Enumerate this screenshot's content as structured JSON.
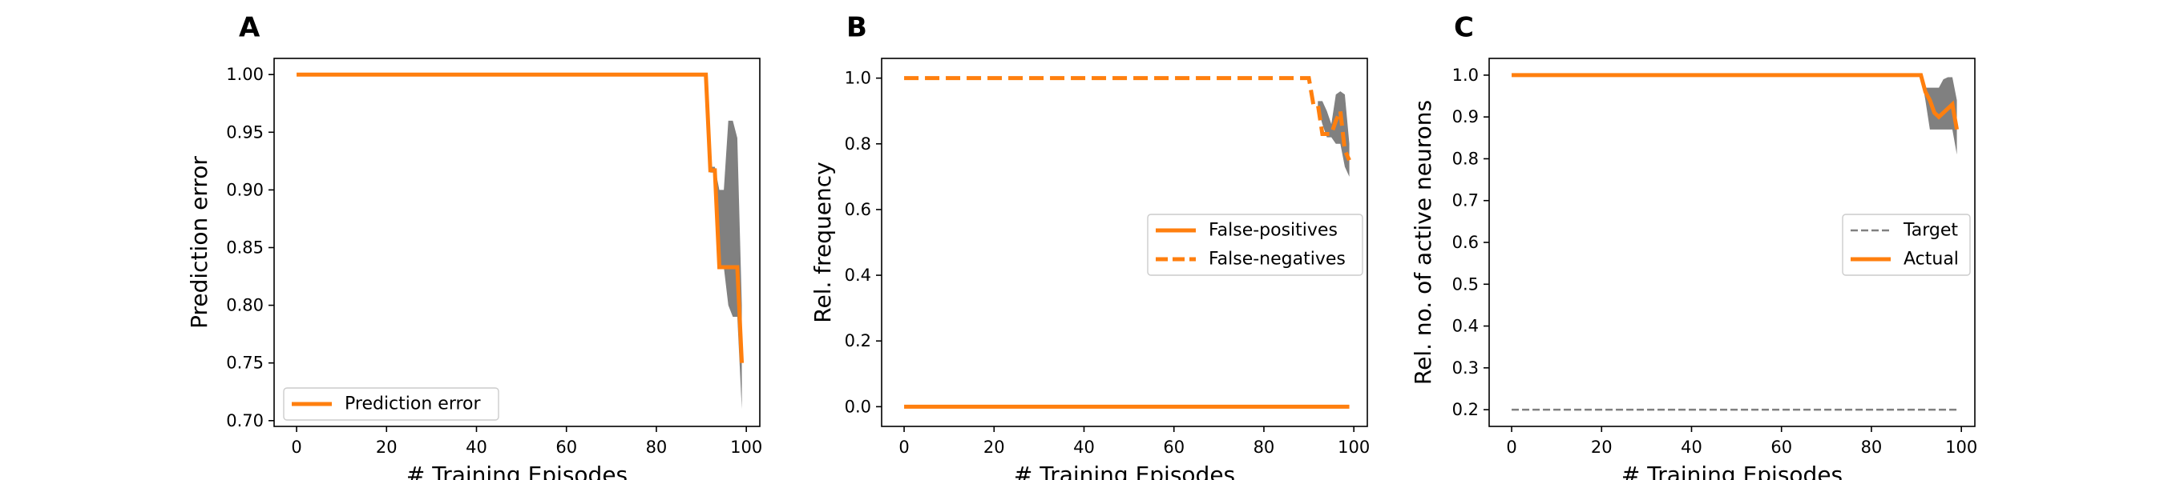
{
  "colors": {
    "series": "#ff7f0e",
    "band": "#808080",
    "target": "#808080",
    "axis": "#000000"
  },
  "chart_data": [
    {
      "id": "A",
      "panel_label": "A",
      "type": "line",
      "xlabel": "# Training Episodes",
      "ylabel": "Prediction error",
      "xlim": [
        -5,
        103
      ],
      "ylim": [
        0.695,
        1.014
      ],
      "xticks": [
        0,
        20,
        40,
        60,
        80,
        100
      ],
      "yticks": [
        0.7,
        0.75,
        0.8,
        0.85,
        0.9,
        0.95,
        1.0
      ],
      "ytick_decimals": 2,
      "legend": {
        "position": "lower-left"
      },
      "series": [
        {
          "name": "Prediction error",
          "style": "solid",
          "x": [
            0,
            91,
            92,
            93,
            94,
            95,
            96,
            97,
            98,
            99
          ],
          "y": [
            1.0,
            1.0,
            0.917,
            0.917,
            0.833,
            0.833,
            0.833,
            0.833,
            0.833,
            0.75
          ]
        }
      ],
      "bands": [
        {
          "x": [
            91,
            92,
            93,
            94,
            95,
            96,
            97,
            98,
            99
          ],
          "upper": [
            1.0,
            0.92,
            0.92,
            0.9,
            0.9,
            0.96,
            0.96,
            0.945,
            0.8
          ],
          "lower": [
            1.0,
            0.915,
            0.915,
            0.833,
            0.833,
            0.8,
            0.79,
            0.79,
            0.71
          ]
        }
      ]
    },
    {
      "id": "B",
      "panel_label": "B",
      "type": "line",
      "xlabel": "# Training Episodes",
      "ylabel": "Rel. frequency",
      "xlim": [
        -5,
        103
      ],
      "ylim": [
        -0.06,
        1.06
      ],
      "xticks": [
        0,
        20,
        40,
        60,
        80,
        100
      ],
      "yticks": [
        0.0,
        0.2,
        0.4,
        0.6,
        0.8,
        1.0
      ],
      "ytick_decimals": 1,
      "legend": {
        "position": "center-right"
      },
      "series": [
        {
          "name": "False-positives",
          "style": "solid",
          "x": [
            0,
            99
          ],
          "y": [
            0.0,
            0.0
          ]
        },
        {
          "name": "False-negatives",
          "style": "dashed",
          "x": [
            0,
            90,
            91,
            92,
            93,
            94,
            95,
            96,
            97,
            98,
            99
          ],
          "y": [
            1.0,
            1.0,
            0.92,
            0.92,
            0.83,
            0.83,
            0.83,
            0.87,
            0.9,
            0.78,
            0.75
          ]
        }
      ],
      "bands": [
        {
          "x": [
            92,
            93,
            94,
            95,
            96,
            97,
            98,
            99
          ],
          "upper": [
            0.93,
            0.93,
            0.9,
            0.86,
            0.95,
            0.96,
            0.95,
            0.8
          ],
          "lower": [
            0.91,
            0.86,
            0.82,
            0.82,
            0.8,
            0.8,
            0.73,
            0.7
          ]
        }
      ]
    },
    {
      "id": "C",
      "panel_label": "C",
      "type": "line",
      "xlabel": "# Training Episodes",
      "ylabel": "Rel. no. of active neurons",
      "xlim": [
        -5,
        103
      ],
      "ylim": [
        0.16,
        1.04
      ],
      "xticks": [
        0,
        20,
        40,
        60,
        80,
        100
      ],
      "yticks": [
        0.2,
        0.3,
        0.4,
        0.5,
        0.6,
        0.7,
        0.8,
        0.9,
        1.0
      ],
      "ytick_decimals": 1,
      "legend": {
        "position": "center-right"
      },
      "series": [
        {
          "name": "Target",
          "style": "dashed-thin",
          "x": [
            0,
            99
          ],
          "y": [
            0.2,
            0.2
          ]
        },
        {
          "name": "Actual",
          "style": "solid",
          "x": [
            0,
            91,
            92,
            93,
            94,
            95,
            96,
            97,
            98,
            99
          ],
          "y": [
            1.0,
            1.0,
            0.96,
            0.94,
            0.91,
            0.9,
            0.91,
            0.92,
            0.93,
            0.87
          ]
        }
      ],
      "bands": [
        {
          "x": [
            91,
            92,
            93,
            94,
            95,
            96,
            97,
            98,
            99
          ],
          "upper": [
            1.0,
            0.97,
            0.97,
            0.97,
            0.97,
            0.99,
            0.995,
            0.995,
            0.94
          ],
          "lower": [
            1.0,
            0.94,
            0.87,
            0.87,
            0.87,
            0.87,
            0.87,
            0.87,
            0.81
          ]
        }
      ]
    }
  ]
}
